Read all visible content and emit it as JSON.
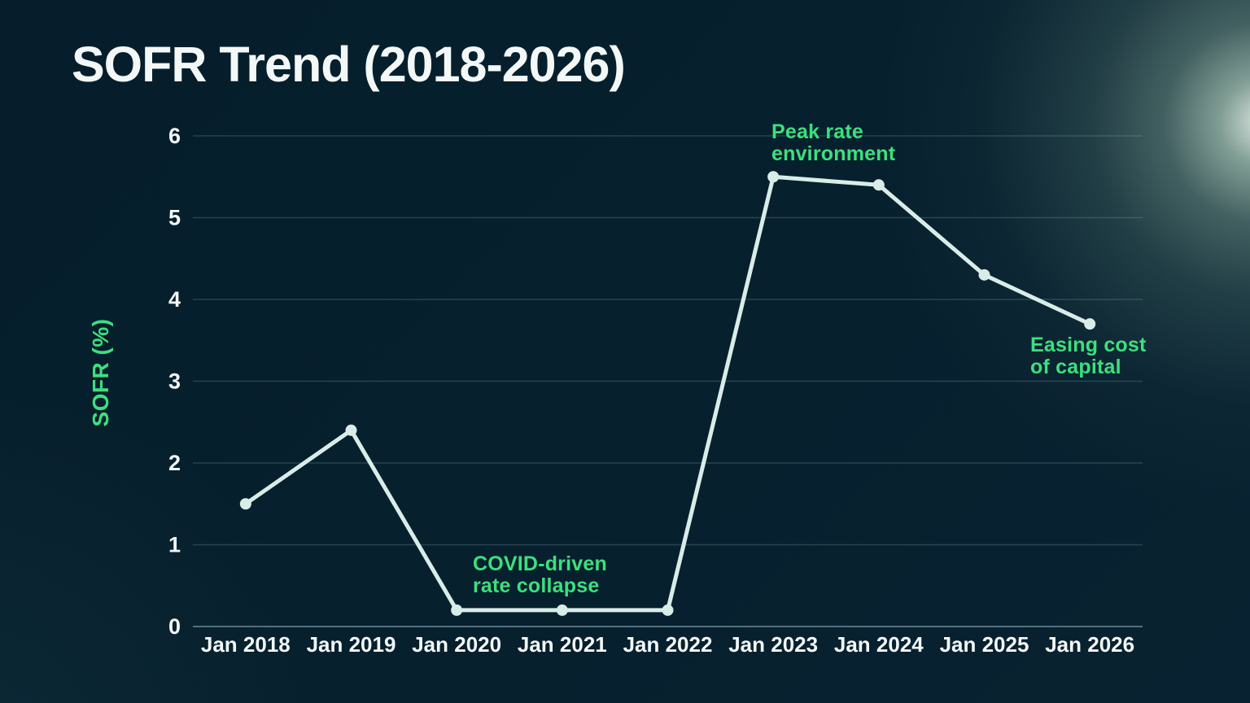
{
  "colors": {
    "background": "#07202e",
    "text": "#f3f8f7",
    "green": "#3ce07d",
    "line": "#d9ede8",
    "grid": "rgba(154,189,202,0.22)",
    "axis": "#53707d",
    "flare": "#b0ceba"
  },
  "chart_data": {
    "type": "line",
    "title": "SOFR Trend (2018-2026)",
    "xlabel": "",
    "ylabel": "SOFR (%)",
    "categories": [
      "Jan 2018",
      "Jan 2019",
      "Jan 2020",
      "Jan 2021",
      "Jan 2022",
      "Jan 2023",
      "Jan 2024",
      "Jan 2025",
      "Jan 2026"
    ],
    "series": [
      {
        "name": "SOFR",
        "values": [
          1.5,
          2.4,
          0.2,
          0.2,
          0.2,
          5.5,
          5.4,
          4.3,
          3.7
        ]
      }
    ],
    "ylim": [
      0,
      6
    ],
    "yticks": [
      0,
      1,
      2,
      3,
      4,
      5,
      6
    ],
    "grid": true,
    "legend": false,
    "annotations": [
      {
        "text": "Peak rate\nenvironment",
        "target": "Jan 2023"
      },
      {
        "text": "COVID-driven\nrate collapse",
        "target": "Jan 2021"
      },
      {
        "text": "Easing cost\nof capital",
        "target": "Jan 2026"
      }
    ]
  }
}
